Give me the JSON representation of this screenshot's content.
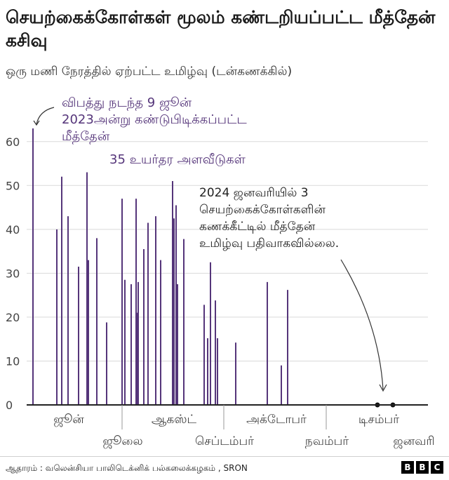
{
  "title": "செயற்கைக்கோள்கள் மூலம் கண்டறியப்பட்ட மீத்தேன் கசிவு",
  "subtitle": "ஒரு மணி நேரத்தில் ஏற்பட்ட உமிழ்வு (டன்கணக்கில்)",
  "source": "ஆதாரம் : வலென்சியா பாலிடெக்னிக் பல்கலைக்கழகம் , SRON",
  "logo": [
    "B",
    "B",
    "C"
  ],
  "colors": {
    "bar": "#55357a",
    "annotation": "#55357a",
    "axis": "#222222",
    "grid": "#d9d9d9",
    "text": "#444444"
  },
  "chart_data": {
    "type": "bar",
    "ylim": [
      0,
      65
    ],
    "yticks": [
      0,
      10,
      20,
      30,
      40,
      50,
      60
    ],
    "grid": true,
    "months_top": [
      "ஜூன்",
      "ஆகஸ்ட்",
      "அக்டோபர்",
      "டிசம்பர்"
    ],
    "months_bottom": [
      "ஜூலை",
      "செப்டம்பர்",
      "நவம்பர்",
      "ஜனவரி"
    ],
    "values": [
      63,
      40,
      52,
      43,
      31.5,
      53,
      33,
      38,
      18.8,
      47,
      28.5,
      27.5,
      47,
      21,
      28,
      35.5,
      41.5,
      43,
      33,
      51,
      42.5,
      45.5,
      27.5,
      37.8,
      22.8,
      15.2,
      32.5,
      23.8,
      15.2,
      14.2,
      28,
      9,
      26.2,
      0,
      0
    ],
    "annotations": {
      "first_event": "விபத்து நடந்த 9 ஜூன் 2023அன்று கண்டுபிடிக்கப்பட்ட மீத்தேன்",
      "count": "35 உயர்தர அளவீடுகள்",
      "missing": "2024 ஜனவரியில் 3 செயற்கைக்கோள்களின் கணக்கீட்டில் மீத்தேன் உமிழ்வு பதிவாகவில்லை."
    }
  }
}
